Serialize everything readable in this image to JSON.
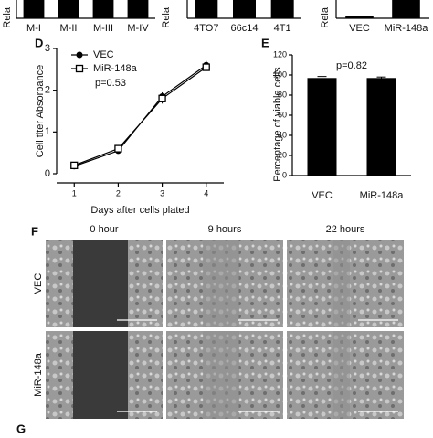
{
  "chart_data": [
    {
      "type": "bar-fragment",
      "y_label": "Rela",
      "categories": [
        "M-I",
        "M-II",
        "M-III",
        "M-IV"
      ]
    },
    {
      "type": "bar-fragment",
      "y_label": "Rela",
      "categories": [
        "4TO7",
        "66c14",
        "4T1"
      ]
    },
    {
      "type": "bar-fragment",
      "y_label": "Rela",
      "categories": [
        "VEC",
        "MiR-148a"
      ]
    },
    {
      "type": "line",
      "panel": "D",
      "x_label": "Days after cells plated",
      "y_label": "Cell titer Absorbance",
      "x": [
        1,
        2,
        3,
        4
      ],
      "xlim": [
        0.6,
        4.4
      ],
      "xticks": [
        1,
        2,
        3,
        4
      ],
      "ylim": [
        0,
        3
      ],
      "yticks": [
        0,
        1,
        2,
        3
      ],
      "series": [
        {
          "name": "VEC",
          "color": "#000000",
          "marker": "filled-circle",
          "values": [
            0.18,
            0.55,
            1.85,
            2.6
          ],
          "errors": [
            0.03,
            0.04,
            0.1,
            0.1
          ]
        },
        {
          "name": "MiR-148a",
          "color": "#000000",
          "marker": "open-square",
          "values": [
            0.2,
            0.6,
            1.8,
            2.55
          ],
          "errors": [
            0.03,
            0.04,
            0.12,
            0.08
          ]
        }
      ],
      "annotation": "p=0.53"
    },
    {
      "type": "bar",
      "panel": "E",
      "y_label": "Percentage of viable cells",
      "categories": [
        "VEC",
        "MiR-148a"
      ],
      "values": [
        97,
        97
      ],
      "errors": [
        1.5,
        1
      ],
      "color": "#000000",
      "ylim": [
        0,
        120
      ],
      "yticks": [
        0,
        20,
        40,
        60,
        80,
        100,
        120
      ],
      "annotation": "p=0.82"
    }
  ],
  "panel_f": {
    "label": "F",
    "columns": [
      "0 hour",
      "9 hours",
      "22 hours"
    ],
    "rows": [
      "VEC",
      "MiR-148a"
    ]
  },
  "panel_g": {
    "label": "G"
  }
}
